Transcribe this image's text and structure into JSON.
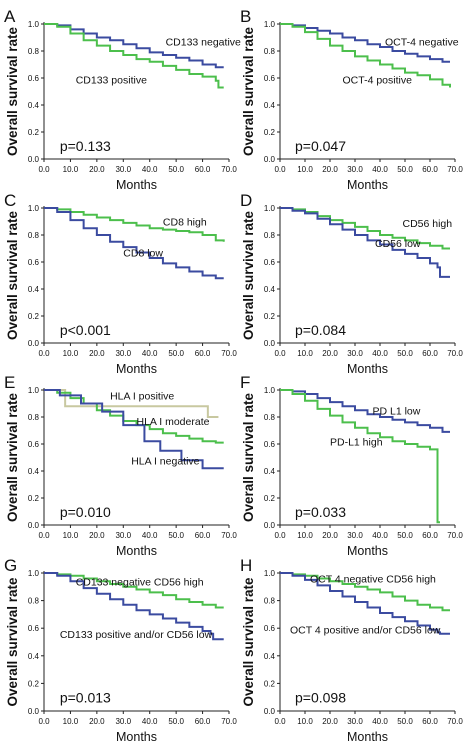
{
  "figure": {
    "y_axis_label": "Overall survival rate",
    "x_axis_label": "Months"
  },
  "chart_data": [
    {
      "panel": "A",
      "type": "line",
      "xlabel": "Months",
      "ylabel": "Overall survival rate",
      "xlim": [
        0,
        70
      ],
      "ylim": [
        0,
        1
      ],
      "xticks": [
        "0.0",
        "10.0",
        "20.0",
        "30.0",
        "40.0",
        "50.0",
        "60.0",
        "70.0"
      ],
      "yticks": [
        "0.0",
        "0.2",
        "0.4",
        "0.6",
        "0.8",
        "1.0"
      ],
      "pvalue": "p=0.133",
      "series": [
        {
          "name": "CD133 negative",
          "color": "#3b4ba0",
          "x": [
            0,
            5,
            10,
            15,
            20,
            25,
            30,
            35,
            40,
            45,
            50,
            55,
            60,
            65,
            68
          ],
          "y": [
            1.0,
            0.99,
            0.96,
            0.93,
            0.9,
            0.88,
            0.85,
            0.82,
            0.79,
            0.77,
            0.75,
            0.73,
            0.7,
            0.68,
            0.68
          ]
        },
        {
          "name": "CD133 positive",
          "color": "#4cbf4c",
          "x": [
            0,
            5,
            10,
            15,
            20,
            25,
            30,
            35,
            40,
            45,
            50,
            55,
            60,
            65,
            66,
            68
          ],
          "y": [
            1.0,
            0.98,
            0.93,
            0.88,
            0.84,
            0.8,
            0.77,
            0.74,
            0.72,
            0.69,
            0.66,
            0.63,
            0.61,
            0.58,
            0.53,
            0.53
          ]
        }
      ],
      "labels": [
        "CD133 negative",
        "CD133 positive"
      ]
    },
    {
      "panel": "B",
      "type": "line",
      "xlabel": "Months",
      "ylabel": "Overall survival rate",
      "xlim": [
        0,
        70
      ],
      "ylim": [
        0,
        1
      ],
      "xticks": [
        "0.0",
        "10.0",
        "20.0",
        "30.0",
        "40.0",
        "50.0",
        "60.0",
        "70.0"
      ],
      "yticks": [
        "0.0",
        "0.2",
        "0.4",
        "0.6",
        "0.8",
        "1.0"
      ],
      "pvalue": "p=0.047",
      "series": [
        {
          "name": "OCT-4 negative",
          "color": "#3b4ba0",
          "x": [
            0,
            5,
            10,
            15,
            20,
            25,
            30,
            35,
            40,
            45,
            50,
            55,
            60,
            65,
            68
          ],
          "y": [
            1.0,
            0.99,
            0.97,
            0.95,
            0.93,
            0.9,
            0.88,
            0.85,
            0.83,
            0.8,
            0.78,
            0.76,
            0.74,
            0.72,
            0.72
          ]
        },
        {
          "name": "OCT-4 positive",
          "color": "#4cbf4c",
          "x": [
            0,
            5,
            10,
            15,
            20,
            25,
            30,
            35,
            40,
            45,
            50,
            55,
            60,
            65,
            68
          ],
          "y": [
            1.0,
            0.98,
            0.94,
            0.89,
            0.84,
            0.8,
            0.76,
            0.73,
            0.7,
            0.67,
            0.64,
            0.62,
            0.59,
            0.55,
            0.53
          ]
        }
      ],
      "labels": [
        "OCT-4 negative",
        "OCT-4 positive"
      ]
    },
    {
      "panel": "C",
      "type": "line",
      "xlabel": "Months",
      "ylabel": "Overall survival rate",
      "xlim": [
        0,
        70
      ],
      "ylim": [
        0,
        1
      ],
      "xticks": [
        "0.0",
        "10.0",
        "20.0",
        "30.0",
        "40.0",
        "50.0",
        "60.0",
        "70.0"
      ],
      "yticks": [
        "0.0",
        "0.2",
        "0.4",
        "0.6",
        "0.8",
        "1.0"
      ],
      "pvalue": "p<0.001",
      "series": [
        {
          "name": "CD8 high",
          "color": "#4cbf4c",
          "x": [
            0,
            5,
            10,
            15,
            20,
            25,
            30,
            35,
            40,
            45,
            50,
            55,
            60,
            65,
            68
          ],
          "y": [
            1.0,
            0.99,
            0.97,
            0.95,
            0.93,
            0.91,
            0.89,
            0.87,
            0.85,
            0.84,
            0.83,
            0.82,
            0.8,
            0.76,
            0.75
          ]
        },
        {
          "name": "CD8 low",
          "color": "#3b4ba0",
          "x": [
            0,
            5,
            10,
            15,
            20,
            25,
            30,
            35,
            40,
            45,
            50,
            55,
            60,
            65,
            68
          ],
          "y": [
            1.0,
            0.97,
            0.91,
            0.85,
            0.8,
            0.75,
            0.71,
            0.67,
            0.63,
            0.59,
            0.56,
            0.53,
            0.5,
            0.48,
            0.48
          ]
        }
      ],
      "labels": [
        "CD8 high",
        "CD8 low"
      ]
    },
    {
      "panel": "D",
      "type": "line",
      "xlabel": "Months",
      "ylabel": "Overall survival rate",
      "xlim": [
        0,
        70
      ],
      "ylim": [
        0,
        1
      ],
      "xticks": [
        "0.0",
        "10.0",
        "20.0",
        "30.0",
        "40.0",
        "50.0",
        "60.0",
        "70.0"
      ],
      "yticks": [
        "0.0",
        "0.2",
        "0.4",
        "0.6",
        "0.8",
        "1.0"
      ],
      "pvalue": "p=0.084",
      "series": [
        {
          "name": "CD56 high",
          "color": "#4cbf4c",
          "x": [
            0,
            5,
            10,
            15,
            20,
            25,
            30,
            35,
            40,
            45,
            50,
            55,
            60,
            65,
            68
          ],
          "y": [
            1.0,
            0.99,
            0.97,
            0.94,
            0.91,
            0.89,
            0.86,
            0.83,
            0.8,
            0.78,
            0.76,
            0.74,
            0.72,
            0.7,
            0.7
          ]
        },
        {
          "name": "CD56 low",
          "color": "#3b4ba0",
          "x": [
            0,
            5,
            10,
            15,
            20,
            25,
            30,
            35,
            40,
            45,
            50,
            55,
            60,
            63,
            64,
            68
          ],
          "y": [
            1.0,
            0.98,
            0.96,
            0.92,
            0.88,
            0.84,
            0.8,
            0.76,
            0.73,
            0.69,
            0.66,
            0.63,
            0.59,
            0.56,
            0.49,
            0.49
          ]
        }
      ],
      "labels": [
        "CD56 high",
        "CD56 low"
      ]
    },
    {
      "panel": "E",
      "type": "line",
      "xlabel": "Months",
      "ylabel": "Overall survival rate",
      "xlim": [
        0,
        70
      ],
      "ylim": [
        0,
        1
      ],
      "xticks": [
        "0.0",
        "10.0",
        "20.0",
        "30.0",
        "40.0",
        "50.0",
        "60.0",
        "70.0"
      ],
      "yticks": [
        "0.0",
        "0.2",
        "0.4",
        "0.6",
        "0.8",
        "1.0"
      ],
      "pvalue": "p=0.010",
      "series": [
        {
          "name": "HLA I positive",
          "color": "#c8c8a0",
          "x": [
            0,
            8,
            8,
            62,
            62,
            66
          ],
          "y": [
            1.0,
            1.0,
            0.88,
            0.88,
            0.8,
            0.8
          ]
        },
        {
          "name": "HLA I moderate",
          "color": "#4cbf4c",
          "x": [
            0,
            5,
            10,
            15,
            20,
            25,
            30,
            35,
            40,
            45,
            50,
            55,
            60,
            65,
            68
          ],
          "y": [
            1.0,
            0.98,
            0.94,
            0.9,
            0.85,
            0.81,
            0.77,
            0.74,
            0.71,
            0.68,
            0.66,
            0.64,
            0.62,
            0.61,
            0.61
          ]
        },
        {
          "name": "HLA I negative",
          "color": "#3b4ba0",
          "x": [
            0,
            6,
            6,
            14,
            14,
            22,
            22,
            30,
            30,
            38,
            38,
            44,
            44,
            52,
            52,
            60,
            60,
            68
          ],
          "y": [
            1.0,
            1.0,
            0.96,
            0.96,
            0.9,
            0.9,
            0.84,
            0.84,
            0.74,
            0.74,
            0.62,
            0.62,
            0.55,
            0.55,
            0.48,
            0.48,
            0.42,
            0.42
          ]
        }
      ],
      "labels": [
        "HLA I positive",
        "HLA I moderate",
        "HLA I negative"
      ]
    },
    {
      "panel": "F",
      "type": "line",
      "xlabel": "Months",
      "ylabel": "Overall survival rate",
      "xlim": [
        0,
        70
      ],
      "ylim": [
        0,
        1
      ],
      "xticks": [
        "0.0",
        "10.0",
        "20.0",
        "30.0",
        "40.0",
        "50.0",
        "60.0",
        "70.0"
      ],
      "yticks": [
        "0.0",
        "0.2",
        "0.4",
        "0.6",
        "0.8",
        "1.0"
      ],
      "pvalue": "p=0.033",
      "series": [
        {
          "name": "PD L1 low",
          "color": "#3b4ba0",
          "x": [
            0,
            5,
            10,
            15,
            20,
            25,
            30,
            35,
            40,
            45,
            50,
            55,
            60,
            65,
            68
          ],
          "y": [
            1.0,
            0.99,
            0.97,
            0.94,
            0.91,
            0.88,
            0.85,
            0.82,
            0.8,
            0.78,
            0.76,
            0.74,
            0.72,
            0.69,
            0.69
          ]
        },
        {
          "name": "PD-L1 high",
          "color": "#4cbf4c",
          "x": [
            0,
            5,
            10,
            15,
            20,
            25,
            30,
            35,
            40,
            45,
            50,
            55,
            60,
            63,
            63,
            64
          ],
          "y": [
            1.0,
            0.97,
            0.92,
            0.86,
            0.81,
            0.76,
            0.72,
            0.68,
            0.65,
            0.62,
            0.6,
            0.58,
            0.56,
            0.56,
            0.02,
            0.02
          ]
        }
      ],
      "labels": [
        "PD L1 low",
        "PD-L1 high"
      ]
    },
    {
      "panel": "G",
      "type": "line",
      "xlabel": "Months",
      "ylabel": "Overall survival rate",
      "xlim": [
        0,
        70
      ],
      "ylim": [
        0,
        1
      ],
      "xticks": [
        "0.0",
        "10.0",
        "20.0",
        "30.0",
        "40.0",
        "50.0",
        "60.0",
        "70.0"
      ],
      "yticks": [
        "0.0",
        "0.2",
        "0.4",
        "0.6",
        "0.8",
        "1.0"
      ],
      "pvalue": "p=0.013",
      "series": [
        {
          "name": "CD133 negative CD56 high",
          "color": "#4cbf4c",
          "x": [
            0,
            5,
            10,
            15,
            20,
            25,
            30,
            35,
            40,
            45,
            50,
            55,
            60,
            65,
            68
          ],
          "y": [
            1.0,
            0.99,
            0.98,
            0.96,
            0.94,
            0.92,
            0.9,
            0.88,
            0.86,
            0.84,
            0.81,
            0.79,
            0.77,
            0.75,
            0.75
          ]
        },
        {
          "name": "CD133 positive and/or CD56 low",
          "color": "#3b4ba0",
          "x": [
            0,
            5,
            10,
            15,
            20,
            25,
            30,
            35,
            40,
            45,
            50,
            55,
            60,
            63,
            64,
            68
          ],
          "y": [
            1.0,
            0.98,
            0.94,
            0.89,
            0.85,
            0.81,
            0.77,
            0.73,
            0.7,
            0.67,
            0.64,
            0.61,
            0.58,
            0.56,
            0.52,
            0.52
          ]
        }
      ],
      "labels": [
        "CD133 negative CD56 high",
        "CD133 positive and/or CD56 low"
      ]
    },
    {
      "panel": "H",
      "type": "line",
      "xlabel": "Months",
      "ylabel": "Overall survival rate",
      "xlim": [
        0,
        70
      ],
      "ylim": [
        0,
        1
      ],
      "xticks": [
        "0.0",
        "10.0",
        "20.0",
        "30.0",
        "40.0",
        "50.0",
        "60.0",
        "70.0"
      ],
      "yticks": [
        "0.0",
        "0.2",
        "0.4",
        "0.6",
        "0.8",
        "1.0"
      ],
      "pvalue": "p=0.098",
      "series": [
        {
          "name": "OCT 4 negative CD56 high",
          "color": "#4cbf4c",
          "x": [
            0,
            5,
            10,
            15,
            20,
            25,
            30,
            35,
            40,
            45,
            50,
            55,
            60,
            65,
            68
          ],
          "y": [
            1.0,
            0.99,
            0.98,
            0.96,
            0.94,
            0.92,
            0.9,
            0.88,
            0.86,
            0.83,
            0.8,
            0.77,
            0.75,
            0.73,
            0.73
          ]
        },
        {
          "name": "OCT 4 positive and/or CD56 low",
          "color": "#3b4ba0",
          "x": [
            0,
            5,
            10,
            15,
            20,
            25,
            30,
            35,
            40,
            45,
            50,
            55,
            60,
            63,
            64,
            68
          ],
          "y": [
            1.0,
            0.98,
            0.95,
            0.91,
            0.87,
            0.83,
            0.79,
            0.75,
            0.71,
            0.68,
            0.65,
            0.62,
            0.59,
            0.57,
            0.56,
            0.56
          ]
        }
      ],
      "labels": [
        "OCT 4 negative CD56 high",
        "OCT 4 positive and/or CD56 low"
      ]
    }
  ]
}
